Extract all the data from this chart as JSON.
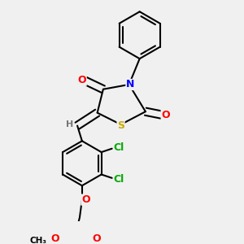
{
  "bg_color": "#f0f0f0",
  "bond_color": "#000000",
  "bond_width": 1.5,
  "atom_colors": {
    "O": "#ff0000",
    "N": "#0000ff",
    "S": "#ccaa00",
    "Cl": "#00aa00",
    "H": "#777777",
    "C": "#000000"
  },
  "font_size": 9,
  "fig_size": [
    3.0,
    3.0
  ],
  "dpi": 100,
  "xlim": [
    0.1,
    0.95
  ],
  "ylim": [
    0.05,
    0.98
  ]
}
